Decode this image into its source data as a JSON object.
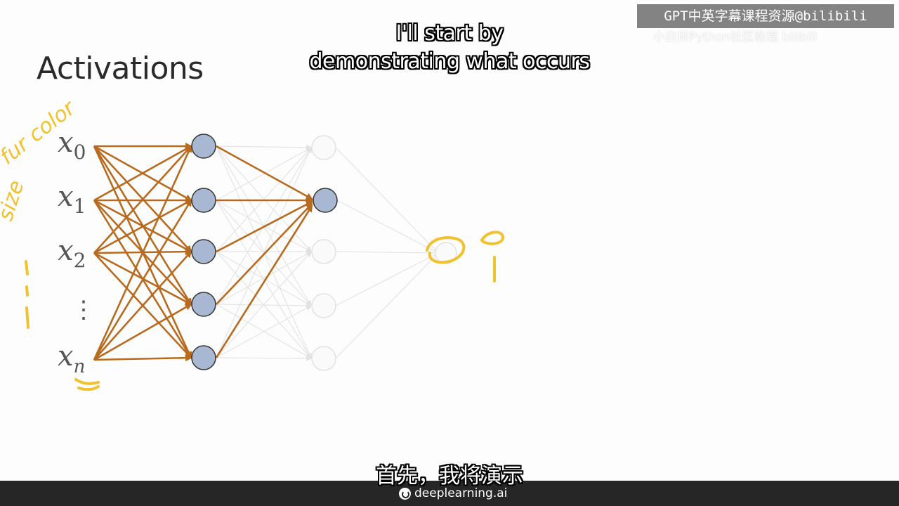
{
  "watermark": {
    "text": "GPT中英字幕课程资源@bilibili",
    "sub_text": "小白拼Python社区教程 bilibili"
  },
  "captions": {
    "top_line_1": "I'll start by",
    "top_line_2": "demonstrating what occurs",
    "bottom": "首先，我将演示"
  },
  "slide": {
    "title": "Activations",
    "inputs": [
      {
        "base": "x",
        "sub": "0"
      },
      {
        "base": "x",
        "sub": "1"
      },
      {
        "base": "x",
        "sub": "2"
      },
      {
        "base": "x",
        "sub": "n"
      }
    ],
    "ellipsis": "⋮",
    "annotations": {
      "fur_color": "fur color",
      "size": "size"
    }
  },
  "colors": {
    "active_edge": "#b86a1e",
    "active_node": "#a9b8d2",
    "faded": "#e2e2e2",
    "annotation": "#f2c12e"
  },
  "footer": {
    "brand": "deeplearning.ai"
  }
}
